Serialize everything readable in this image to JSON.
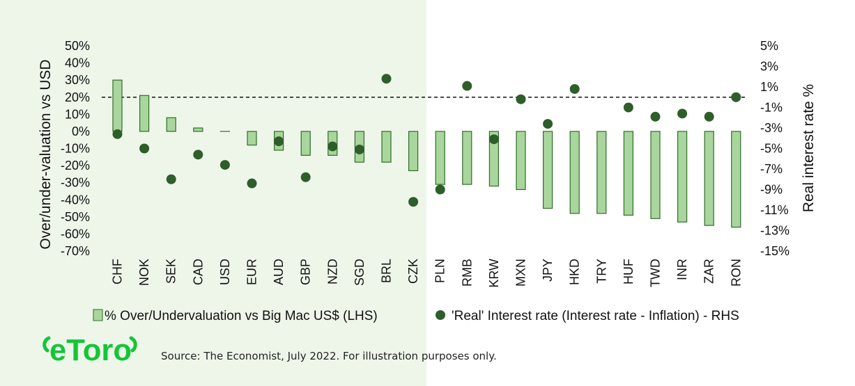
{
  "chart_data": {
    "type": "bar",
    "categories": [
      "CHF",
      "NOK",
      "SEK",
      "CAD",
      "USD",
      "EUR",
      "AUD",
      "GBP",
      "NZD",
      "SGD",
      "BRL",
      "CZK",
      "PLN",
      "RMB",
      "KRW",
      "MXN",
      "JPY",
      "HKD",
      "TRY",
      "HUF",
      "TWD",
      "INR",
      "ZAR",
      "RON"
    ],
    "series": [
      {
        "name": "% Over/Undervaluation vs Big Mac US$ (LHS)",
        "type": "bar",
        "axis": "left",
        "values": [
          30,
          21,
          8,
          2,
          0,
          -8,
          -11,
          -14,
          -14,
          -18,
          -18,
          -23,
          -31,
          -31,
          -32,
          -34,
          -45,
          -48,
          -48,
          -49,
          -51,
          -53,
          -55,
          -56
        ]
      },
      {
        "name": "'Real' Interest rate (Interest rate - Inflation) - RHS",
        "type": "scatter",
        "axis": "right",
        "values": [
          -3.6,
          -5.0,
          -8.0,
          -5.6,
          -6.6,
          -8.4,
          -4.3,
          -7.8,
          -4.8,
          -5.1,
          1.8,
          -10.2,
          -9.0,
          1.1,
          -4.1,
          -0.2,
          -2.6,
          0.8,
          null,
          -1.0,
          -1.9,
          -1.6,
          -1.9,
          0.0
        ]
      }
    ],
    "ylabel": "Over/under-valuation vs USD",
    "y2label": "Real interest rate %",
    "ylim": [
      -70,
      50
    ],
    "y2lim": [
      -15,
      5
    ],
    "yticks": [
      "50%",
      "40%",
      "30%",
      "20%",
      "10%",
      "0%",
      "-10%",
      "-20%",
      "-30%",
      "-40%",
      "-50%",
      "-60%",
      "-70%"
    ],
    "y2ticks": [
      "5%",
      "3%",
      "1%",
      "-1%",
      "-3%",
      "-5%",
      "-7%",
      "-9%",
      "-11%",
      "-13%",
      "-15%"
    ],
    "reference_line": {
      "axis": "right",
      "value": 0,
      "style": "dashed"
    },
    "grid": false,
    "legend": "bottom",
    "colors": {
      "bar_fill": "#a9d69c",
      "bar_stroke": "#2f6b2a",
      "marker": "#2e5e2a",
      "left_panel_bg": "#eef6ea"
    }
  },
  "source": "Source: The Economist, July 2022. For illustration purposes only.",
  "logo": {
    "text": "eToro",
    "color": "#13c636"
  }
}
